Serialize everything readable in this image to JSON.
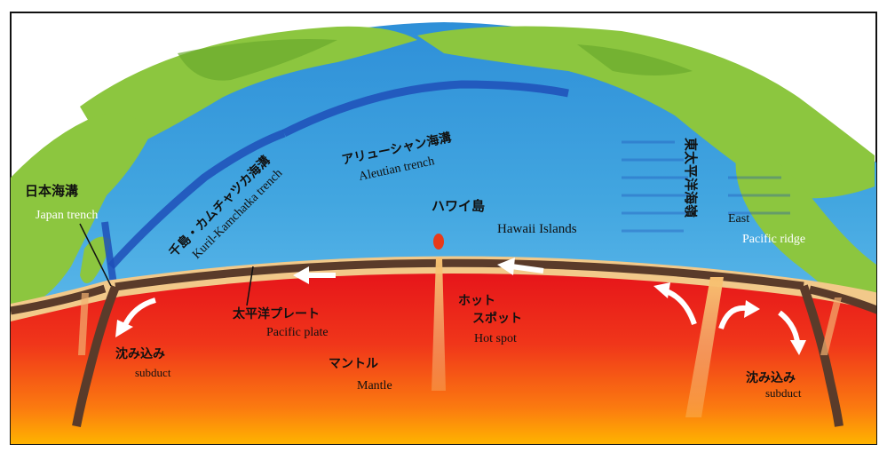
{
  "labels": {
    "japan_trench_jp": "日本海溝",
    "japan_trench_en": "Japan trench",
    "kuril_jp": "千島・カムチャツカ海溝",
    "kuril_en": "Kuril-Kamchatka trench",
    "aleutian_jp": "アリューシャン海溝",
    "aleutian_en": "Aleutian trench",
    "hawaii_jp": "ハワイ島",
    "hawaii_en": "Hawaii Islands",
    "epr_jp": "東太平洋海嶺",
    "epr_en_1": "East",
    "epr_en_2": "Pacific ridge",
    "pacific_plate_jp": "太平洋プレート",
    "pacific_plate_en": "Pacific plate",
    "hotspot_jp_1": "ホット",
    "hotspot_jp_2": "スポット",
    "hotspot_en": "Hot spot",
    "mantle_jp": "マントル",
    "mantle_en": "Mantle",
    "subduct_left_jp": "沈み込み",
    "subduct_left_en": "subduct",
    "subduct_right_jp": "沈み込み",
    "subduct_right_en": "subduct"
  },
  "colors": {
    "ocean": "#3aa0dc",
    "trench": "#1f4fb8",
    "land": "#8cc63f",
    "crust": "#f2c98a",
    "plate_line": "#5a3b2a",
    "mantle_top": "#e8141a",
    "mantle_bottom": "#ffb000"
  }
}
